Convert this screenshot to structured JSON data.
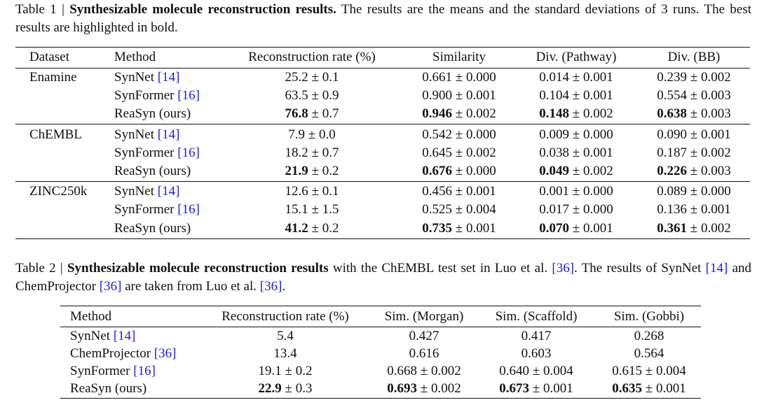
{
  "table1": {
    "caption": {
      "label": "Table 1 |",
      "title": "Synthesizable molecule reconstruction results.",
      "text": "The results are the means and the standard deviations of 3 runs. The best results are highlighted in bold."
    },
    "header": [
      "Dataset",
      "Method",
      "Reconstruction rate (%)",
      "Similarity",
      "Div. (Pathway)",
      "Div. (BB)"
    ],
    "groups": [
      {
        "dataset": "Enamine",
        "rows": [
          {
            "method": {
              "name": "SynNet",
              "ref": "[14]"
            },
            "cells": [
              {
                "m": "25.2",
                "s": "± 0.1"
              },
              {
                "m": "0.661",
                "s": "± 0.000"
              },
              {
                "m": "0.014",
                "s": "± 0.001"
              },
              {
                "m": "0.239",
                "s": "± 0.002"
              }
            ]
          },
          {
            "method": {
              "name": "SynFormer",
              "ref": "[16]"
            },
            "cells": [
              {
                "m": "63.5",
                "s": "± 0.9"
              },
              {
                "m": "0.900",
                "s": "± 0.001"
              },
              {
                "m": "0.104",
                "s": "± 0.001"
              },
              {
                "m": "0.554",
                "s": "± 0.003"
              }
            ]
          },
          {
            "method": {
              "name": "ReaSyn (ours)"
            },
            "cells": [
              {
                "m": "76.8",
                "s": "± 0.7",
                "bold": true
              },
              {
                "m": "0.946",
                "s": "± 0.002",
                "bold": true
              },
              {
                "m": "0.148",
                "s": "± 0.002",
                "bold": true
              },
              {
                "m": "0.638",
                "s": "± 0.003",
                "bold": true
              }
            ]
          }
        ]
      },
      {
        "dataset": "ChEMBL",
        "rows": [
          {
            "method": {
              "name": "SynNet",
              "ref": "[14]"
            },
            "cells": [
              {
                "m": "7.9",
                "s": "± 0.0"
              },
              {
                "m": "0.542",
                "s": "± 0.000"
              },
              {
                "m": "0.009",
                "s": "± 0.000"
              },
              {
                "m": "0.090",
                "s": "± 0.001"
              }
            ]
          },
          {
            "method": {
              "name": "SynFormer",
              "ref": "[16]"
            },
            "cells": [
              {
                "m": "18.2",
                "s": "± 0.7"
              },
              {
                "m": "0.645",
                "s": "± 0.002"
              },
              {
                "m": "0.038",
                "s": "± 0.001"
              },
              {
                "m": "0.187",
                "s": "± 0.002"
              }
            ]
          },
          {
            "method": {
              "name": "ReaSyn (ours)"
            },
            "cells": [
              {
                "m": "21.9",
                "s": "± 0.2",
                "bold": true
              },
              {
                "m": "0.676",
                "s": "± 0.000",
                "bold": true
              },
              {
                "m": "0.049",
                "s": "± 0.002",
                "bold": true
              },
              {
                "m": "0.226",
                "s": "± 0.003",
                "bold": true
              }
            ]
          }
        ]
      },
      {
        "dataset": "ZINC250k",
        "rows": [
          {
            "method": {
              "name": "SynNet",
              "ref": "[14]"
            },
            "cells": [
              {
                "m": "12.6",
                "s": "± 0.1"
              },
              {
                "m": "0.456",
                "s": "± 0.001"
              },
              {
                "m": "0.001",
                "s": "± 0.000"
              },
              {
                "m": "0.089",
                "s": "± 0.000"
              }
            ]
          },
          {
            "method": {
              "name": "SynFormer",
              "ref": "[16]"
            },
            "cells": [
              {
                "m": "15.1",
                "s": "± 1.5"
              },
              {
                "m": "0.525",
                "s": "± 0.004"
              },
              {
                "m": "0.017",
                "s": "± 0.000"
              },
              {
                "m": "0.136",
                "s": "± 0.001"
              }
            ]
          },
          {
            "method": {
              "name": "ReaSyn (ours)"
            },
            "cells": [
              {
                "m": "41.2",
                "s": "± 0.2",
                "bold": true
              },
              {
                "m": "0.735",
                "s": "± 0.001",
                "bold": true
              },
              {
                "m": "0.070",
                "s": "± 0.001",
                "bold": true
              },
              {
                "m": "0.361",
                "s": "± 0.002",
                "bold": true
              }
            ]
          }
        ]
      }
    ]
  },
  "table2": {
    "caption": {
      "label": "Table 2 |",
      "title": "Synthesizable molecule reconstruction results",
      "segments": [
        {
          "t": "with the ChEMBL test set in Luo et al."
        },
        {
          "ref": "[36]"
        },
        {
          "t": ". The results of SynNet"
        },
        {
          "ref": "[14]"
        },
        {
          "t": "and ChemProjector"
        },
        {
          "ref": "[36]"
        },
        {
          "t": "are taken from Luo et al."
        },
        {
          "ref": "[36]"
        },
        {
          "t": "."
        }
      ]
    },
    "header": [
      "Method",
      "Reconstruction rate (%)",
      "Sim. (Morgan)",
      "Sim. (Scaffold)",
      "Sim. (Gobbi)"
    ],
    "rows": [
      {
        "method": {
          "name": "SynNet",
          "ref": "[14]"
        },
        "cells": [
          {
            "m": "5.4"
          },
          {
            "m": "0.427"
          },
          {
            "m": "0.417"
          },
          {
            "m": "0.268"
          }
        ]
      },
      {
        "method": {
          "name": "ChemProjector",
          "ref": "[36]"
        },
        "cells": [
          {
            "m": "13.4"
          },
          {
            "m": "0.616"
          },
          {
            "m": "0.603"
          },
          {
            "m": "0.564"
          }
        ]
      },
      {
        "method": {
          "name": "SynFormer",
          "ref": "[16]"
        },
        "cells": [
          {
            "m": "19.1",
            "s": "± 0.2"
          },
          {
            "m": "0.668",
            "s": "± 0.002"
          },
          {
            "m": "0.640",
            "s": "± 0.004"
          },
          {
            "m": "0.615",
            "s": "± 0.004"
          }
        ]
      },
      {
        "method": {
          "name": "ReaSyn (ours)"
        },
        "cells": [
          {
            "m": "22.9",
            "s": "± 0.3",
            "bold": true
          },
          {
            "m": "0.693",
            "s": "± 0.002",
            "bold": true
          },
          {
            "m": "0.673",
            "s": "± 0.001",
            "bold": true
          },
          {
            "m": "0.635",
            "s": "± 0.001",
            "bold": true
          }
        ]
      }
    ]
  }
}
